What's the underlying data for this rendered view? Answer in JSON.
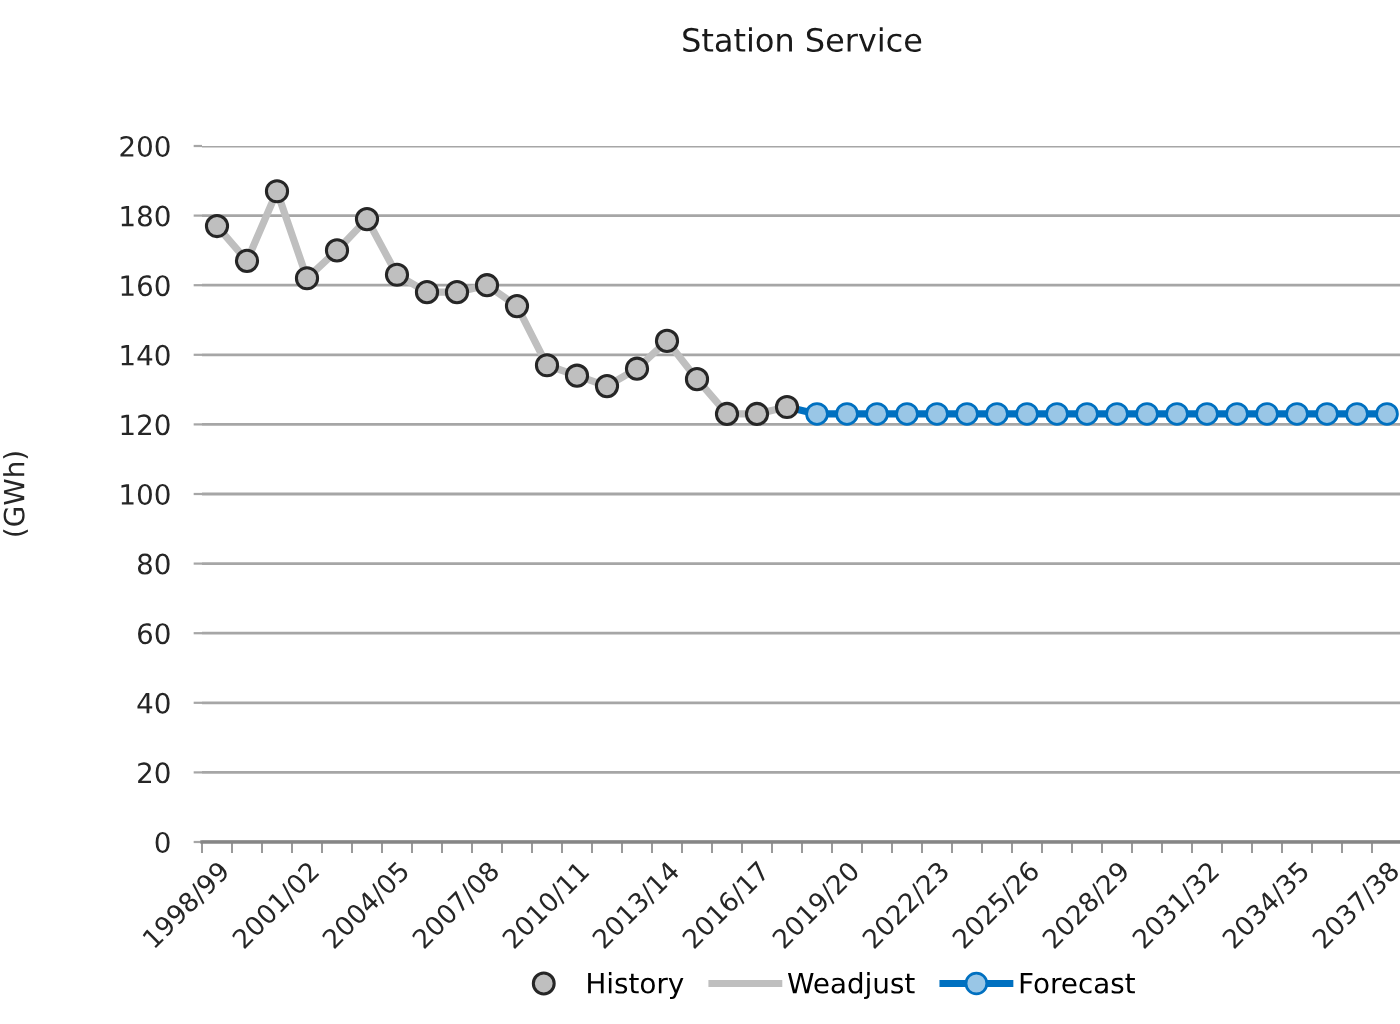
{
  "chart_data": {
    "type": "line",
    "title": "Station Service",
    "ylabel": "(GWh)",
    "categories": [
      "1998/99",
      null,
      null,
      "2001/02",
      null,
      null,
      "2004/05",
      null,
      null,
      "2007/08",
      null,
      null,
      "2010/11",
      null,
      null,
      "2013/14",
      null,
      null,
      "2016/17",
      null,
      null,
      "2019/20",
      null,
      null,
      "2022/23",
      null,
      null,
      "2025/26",
      null,
      null,
      "2028/29",
      null,
      null,
      "2031/32",
      null,
      null,
      "2034/35",
      null,
      null,
      "2037/38"
    ],
    "series": [
      {
        "name": "History",
        "type": "scatter",
        "color": "#bfbfbf",
        "marker": "circle",
        "values": [
          177,
          167,
          187,
          162,
          170,
          179,
          163,
          158,
          158,
          160,
          154,
          137,
          134,
          131,
          136,
          144,
          133,
          123,
          123,
          125,
          null,
          null,
          null,
          null,
          null,
          null,
          null,
          null,
          null,
          null,
          null,
          null,
          null,
          null,
          null,
          null,
          null,
          null,
          null,
          null
        ]
      },
      {
        "name": "Weadjust",
        "color": "#bfbfbf",
        "marker": "none",
        "values": [
          177,
          167,
          187,
          162,
          170,
          179,
          163,
          158,
          158,
          160,
          154,
          137,
          134,
          131,
          136,
          144,
          133,
          123,
          123,
          125,
          null,
          null,
          null,
          null,
          null,
          null,
          null,
          null,
          null,
          null,
          null,
          null,
          null,
          null,
          null,
          null,
          null,
          null,
          null,
          null
        ]
      },
      {
        "name": "Forecast",
        "color": "#0070c0",
        "marker": "circle",
        "values": [
          null,
          null,
          null,
          null,
          null,
          null,
          null,
          null,
          null,
          null,
          null,
          null,
          null,
          null,
          null,
          null,
          null,
          null,
          null,
          125,
          123,
          123,
          123,
          123,
          123,
          123,
          123,
          123,
          123,
          123,
          123,
          123,
          123,
          123,
          123,
          123,
          123,
          123,
          123,
          123
        ]
      }
    ],
    "ylim": [
      0,
      200
    ],
    "yticks": [
      0,
      20,
      40,
      60,
      80,
      100,
      120,
      140,
      160,
      180,
      200
    ],
    "grid": "y",
    "legend": "bottom"
  }
}
